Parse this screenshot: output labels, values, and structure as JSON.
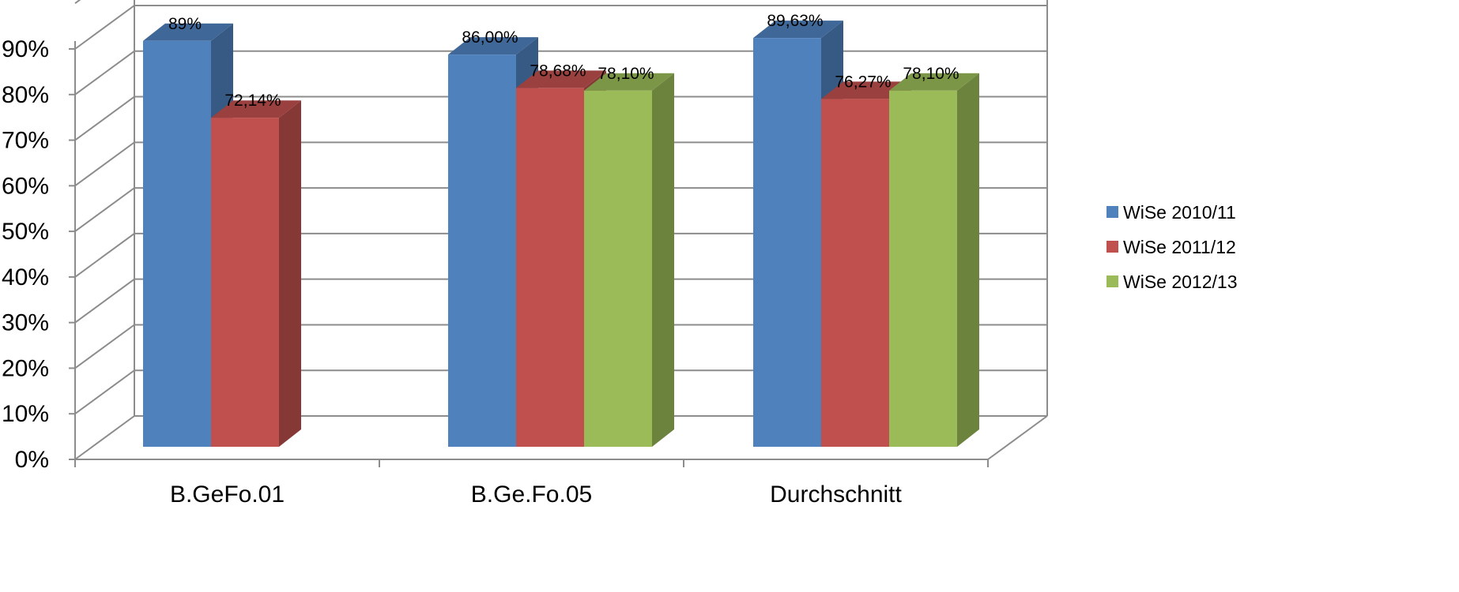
{
  "chart_data": {
    "type": "bar",
    "categories": [
      "B.GeFo.01",
      "B.Ge.Fo.05",
      "Durchschnitt"
    ],
    "series": [
      {
        "name": "WiSe 2010/11",
        "values": [
          89,
          86.0,
          89.63
        ],
        "data_labels": [
          "89%",
          "86,00%",
          "89,63%"
        ],
        "color": "#4F81BD",
        "side_color": "#375A84",
        "top_color": "#3F6797"
      },
      {
        "name": "WiSe 2011/12",
        "values": [
          72.14,
          78.68,
          76.27
        ],
        "data_labels": [
          "72,14%",
          "78,68%",
          "76,27%"
        ],
        "color": "#C0504D",
        "side_color": "#863836",
        "top_color": "#9A403E"
      },
      {
        "name": "WiSe 2012/13",
        "values": [
          null,
          78.1,
          78.1
        ],
        "data_labels": [
          "",
          "78,10%",
          "78,10%"
        ],
        "color": "#9BBB59",
        "side_color": "#6C833E",
        "top_color": "#7C9647"
      }
    ],
    "y_ticks": [
      "0%",
      "10%",
      "20%",
      "30%",
      "40%",
      "50%",
      "60%",
      "70%",
      "80%",
      "90%"
    ],
    "ylim": [
      0,
      100
    ],
    "grid": true,
    "legend": "right",
    "three_d": true,
    "title": "",
    "xlabel": "",
    "ylabel": ""
  }
}
